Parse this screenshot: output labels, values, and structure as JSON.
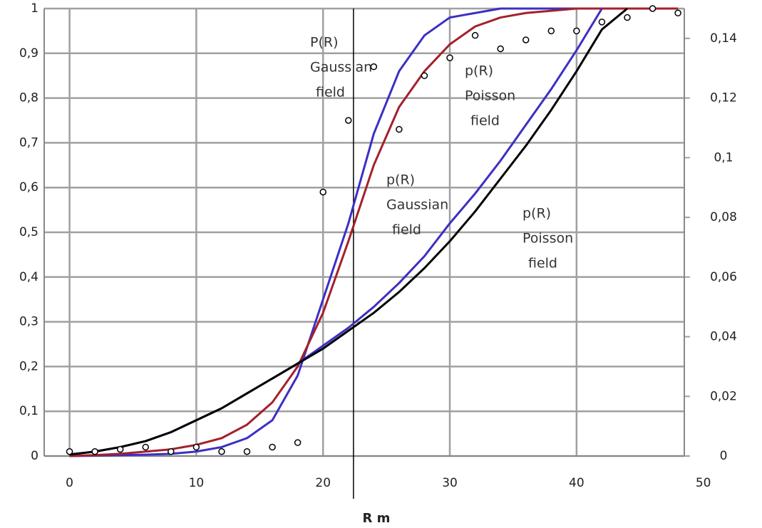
{
  "chart_data": {
    "type": "line",
    "xlabel": "R  m",
    "x": [
      0,
      2,
      4,
      6,
      8,
      10,
      12,
      14,
      16,
      18,
      20,
      22,
      24,
      26,
      28,
      30,
      32,
      34,
      36,
      38,
      40,
      42,
      44,
      46,
      48
    ],
    "xlim": [
      -2,
      48.5
    ],
    "xticks": [
      0,
      10,
      20,
      30,
      40,
      50
    ],
    "ylim": [
      0,
      1
    ],
    "yticks": [
      {
        "value": 0,
        "label": "0"
      },
      {
        "value": 0.1,
        "label": "0,1"
      },
      {
        "value": 0.2,
        "label": "0,2"
      },
      {
        "value": 0.3,
        "label": "0,3"
      },
      {
        "value": 0.4,
        "label": "0,4"
      },
      {
        "value": 0.5,
        "label": "0,5"
      },
      {
        "value": 0.6,
        "label": "0,6"
      },
      {
        "value": 0.7,
        "label": "0,7"
      },
      {
        "value": 0.8,
        "label": "0,8"
      },
      {
        "value": 0.9,
        "label": "0,9"
      },
      {
        "value": 1,
        "label": "1"
      }
    ],
    "y2lim": [
      0,
      0.15
    ],
    "y2ticks": [
      {
        "value": 0,
        "label": "0"
      },
      {
        "value": 0.02,
        "label": "0,02"
      },
      {
        "value": 0.04,
        "label": "0,04"
      },
      {
        "value": 0.06,
        "label": "0,06"
      },
      {
        "value": 0.08,
        "label": "0,08"
      },
      {
        "value": 0.1,
        "label": "0,1"
      },
      {
        "value": 0.12,
        "label": "0,12"
      },
      {
        "value": 0.14,
        "label": "0,14"
      }
    ],
    "grid": true,
    "vline": 22.4,
    "series": [
      {
        "color": "#3b2fc4",
        "values": [
          0,
          0.001,
          0.002,
          0.003,
          0.005,
          0.01,
          0.02,
          0.04,
          0.08,
          0.18,
          0.35,
          0.52,
          0.72,
          0.86,
          0.94,
          0.98,
          0.99,
          1,
          1,
          1,
          1,
          1,
          1,
          1,
          1
        ]
      },
      {
        "color": "#a3202c",
        "values": [
          0,
          0.002,
          0.005,
          0.01,
          0.015,
          0.025,
          0.04,
          0.07,
          0.12,
          0.2,
          0.32,
          0.48,
          0.65,
          0.78,
          0.86,
          0.92,
          0.96,
          0.98,
          0.99,
          0.995,
          1,
          1,
          1,
          1,
          1
        ]
      },
      {
        "color": "#3b2fc4",
        "axis": "y2",
        "values": [
          0.0005,
          0.0015,
          0.003,
          0.005,
          0.008,
          0.012,
          0.016,
          0.021,
          0.026,
          0.031,
          0.037,
          0.043,
          0.05,
          0.058,
          0.067,
          0.078,
          0.088,
          0.099,
          0.111,
          0.123,
          0.136,
          0.15,
          null,
          null,
          null
        ]
      },
      {
        "color": "#000000",
        "axis": "y2",
        "values": [
          0.0005,
          0.0015,
          0.003,
          0.005,
          0.008,
          0.012,
          0.016,
          0.021,
          0.026,
          0.031,
          0.036,
          0.042,
          0.048,
          0.055,
          0.063,
          0.072,
          0.082,
          0.093,
          0.104,
          0.116,
          0.129,
          0.143,
          0.15,
          null,
          null
        ]
      }
    ],
    "points": {
      "color": "#000000",
      "values": [
        0.01,
        0.01,
        0.015,
        0.02,
        0.01,
        0.02,
        0.01,
        0.01,
        0.02,
        0.03,
        0.59,
        0.75,
        0.87,
        0.73,
        0.85,
        0.89,
        0.94,
        0.91,
        0.93,
        0.95,
        0.95,
        0.97,
        0.98,
        1,
        0.99
      ]
    },
    "annotations": [
      [
        "P(R)",
        "Gaussian",
        "field"
      ],
      [
        "p(R)",
        "Poisson",
        "field"
      ],
      [
        "p(R)",
        "Gaussian",
        "field"
      ],
      [
        "p(R)",
        "Poisson",
        "field"
      ]
    ]
  }
}
